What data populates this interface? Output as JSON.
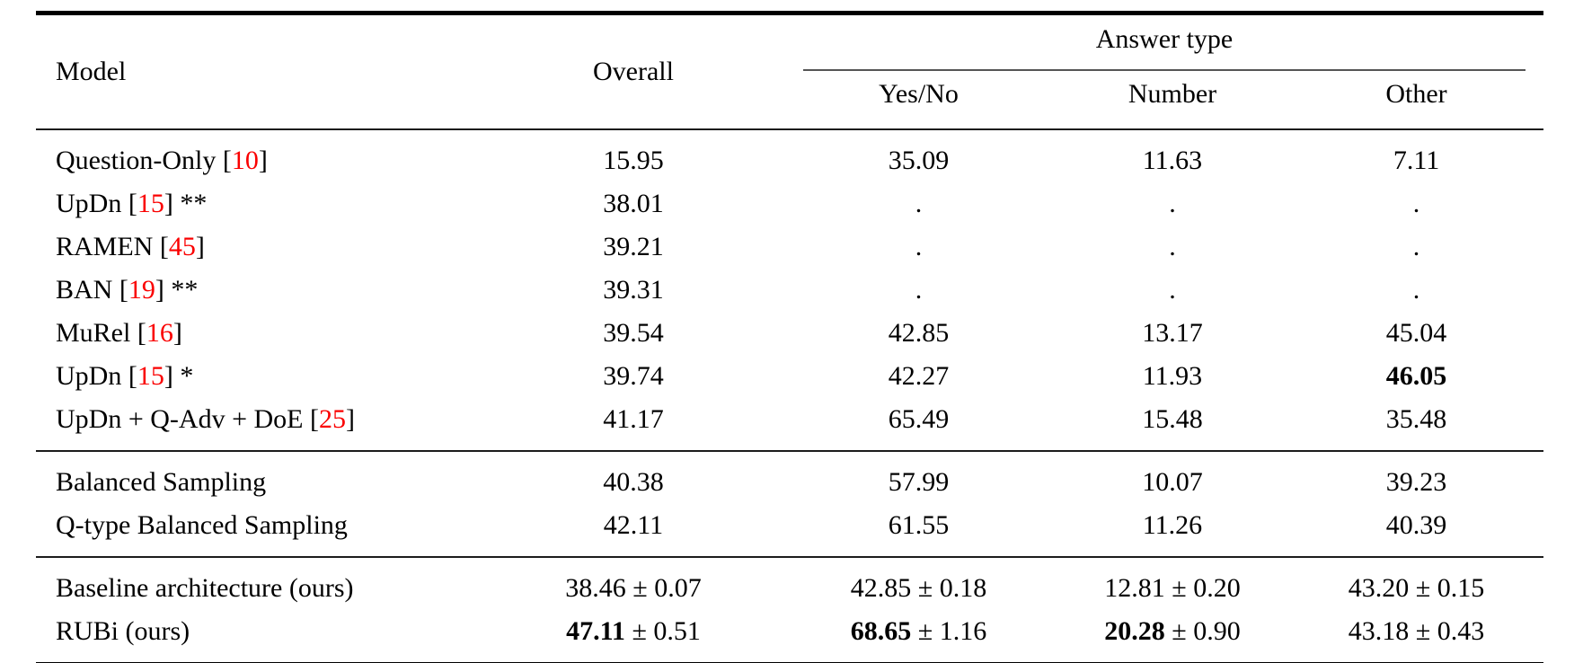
{
  "colors": {
    "text": "#000000",
    "citation": "#fa0000",
    "thick_rule": "#000000",
    "thin_rule": "#1c1c1c"
  },
  "table": {
    "header": {
      "model": "Model",
      "overall": "Overall",
      "answer_type": "Answer type",
      "yes_no": "Yes/No",
      "number": "Number",
      "other": "Other"
    },
    "sections": [
      {
        "rows": [
          {
            "model": {
              "pre": "Question-Only [",
              "cite": "10",
              "post": "]"
            },
            "cells": [
              {
                "main": "15.95"
              },
              {
                "main": "35.09"
              },
              {
                "main": "11.63"
              },
              {
                "main": "7.11"
              }
            ]
          },
          {
            "model": {
              "pre": "UpDn [",
              "cite": "15",
              "post": "] **"
            },
            "cells": [
              {
                "main": "38.01"
              },
              {
                "main": "."
              },
              {
                "main": "."
              },
              {
                "main": "."
              }
            ]
          },
          {
            "model": {
              "pre": "RAMEN [",
              "cite": "45",
              "post": "]"
            },
            "cells": [
              {
                "main": "39.21"
              },
              {
                "main": "."
              },
              {
                "main": "."
              },
              {
                "main": "."
              }
            ]
          },
          {
            "model": {
              "pre": "BAN [",
              "cite": "19",
              "post": "] **"
            },
            "cells": [
              {
                "main": "39.31"
              },
              {
                "main": "."
              },
              {
                "main": "."
              },
              {
                "main": "."
              }
            ]
          },
          {
            "model": {
              "pre": "MuRel [",
              "cite": "16",
              "post": "]"
            },
            "cells": [
              {
                "main": "39.54"
              },
              {
                "main": "42.85"
              },
              {
                "main": "13.17"
              },
              {
                "main": "45.04"
              }
            ]
          },
          {
            "model": {
              "pre": "UpDn [",
              "cite": "15",
              "post": "] *"
            },
            "cells": [
              {
                "main": "39.74"
              },
              {
                "main": "42.27"
              },
              {
                "main": "11.93"
              },
              {
                "main": "46.05",
                "bold": true
              }
            ]
          },
          {
            "model": {
              "pre": "UpDn + Q-Adv + DoE [",
              "cite": "25",
              "post": "]"
            },
            "cells": [
              {
                "main": "41.17"
              },
              {
                "main": "65.49"
              },
              {
                "main": "15.48"
              },
              {
                "main": "35.48"
              }
            ]
          }
        ]
      },
      {
        "rows": [
          {
            "model": {
              "pre": "Balanced Sampling",
              "cite": "",
              "post": ""
            },
            "cells": [
              {
                "main": "40.38"
              },
              {
                "main": "57.99"
              },
              {
                "main": "10.07"
              },
              {
                "main": "39.23"
              }
            ]
          },
          {
            "model": {
              "pre": "Q-type Balanced Sampling",
              "cite": "",
              "post": ""
            },
            "cells": [
              {
                "main": "42.11"
              },
              {
                "main": "61.55"
              },
              {
                "main": "11.26"
              },
              {
                "main": "40.39"
              }
            ]
          }
        ]
      },
      {
        "rows": [
          {
            "model": {
              "pre": "Baseline architecture (ours)",
              "cite": "",
              "post": ""
            },
            "cells": [
              {
                "main": "38.46",
                "pm": "0.07"
              },
              {
                "main": "42.85",
                "pm": "0.18"
              },
              {
                "main": "12.81",
                "pm": "0.20"
              },
              {
                "main": "43.20",
                "pm": "0.15"
              }
            ]
          },
          {
            "model": {
              "pre": "RUBi (ours)",
              "cite": "",
              "post": ""
            },
            "cells": [
              {
                "main": "47.11",
                "pm": "0.51",
                "bold": true
              },
              {
                "main": "68.65",
                "pm": "1.16",
                "bold": true
              },
              {
                "main": "20.28",
                "pm": "0.90",
                "bold": true
              },
              {
                "main": "43.18",
                "pm": "0.43"
              }
            ]
          }
        ]
      }
    ]
  }
}
